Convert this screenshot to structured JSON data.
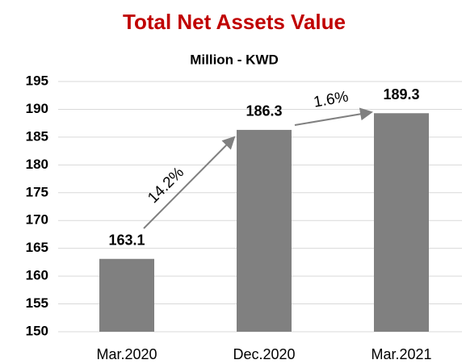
{
  "chart_data": {
    "type": "bar",
    "title": "Total Net Assets Value",
    "subtitle": "Million - KWD",
    "categories": [
      "Mar.2020",
      "Dec.2020",
      "Mar.2021"
    ],
    "values": [
      163.1,
      186.3,
      189.3
    ],
    "color": "#808080",
    "title_color": "#c00000",
    "ylim": [
      150,
      195
    ],
    "yticks": [
      150,
      155,
      160,
      165,
      170,
      175,
      180,
      185,
      190,
      195
    ],
    "grid": true,
    "annotations": [
      {
        "text": "14.2%"
      },
      {
        "text": "1.6%"
      }
    ]
  }
}
